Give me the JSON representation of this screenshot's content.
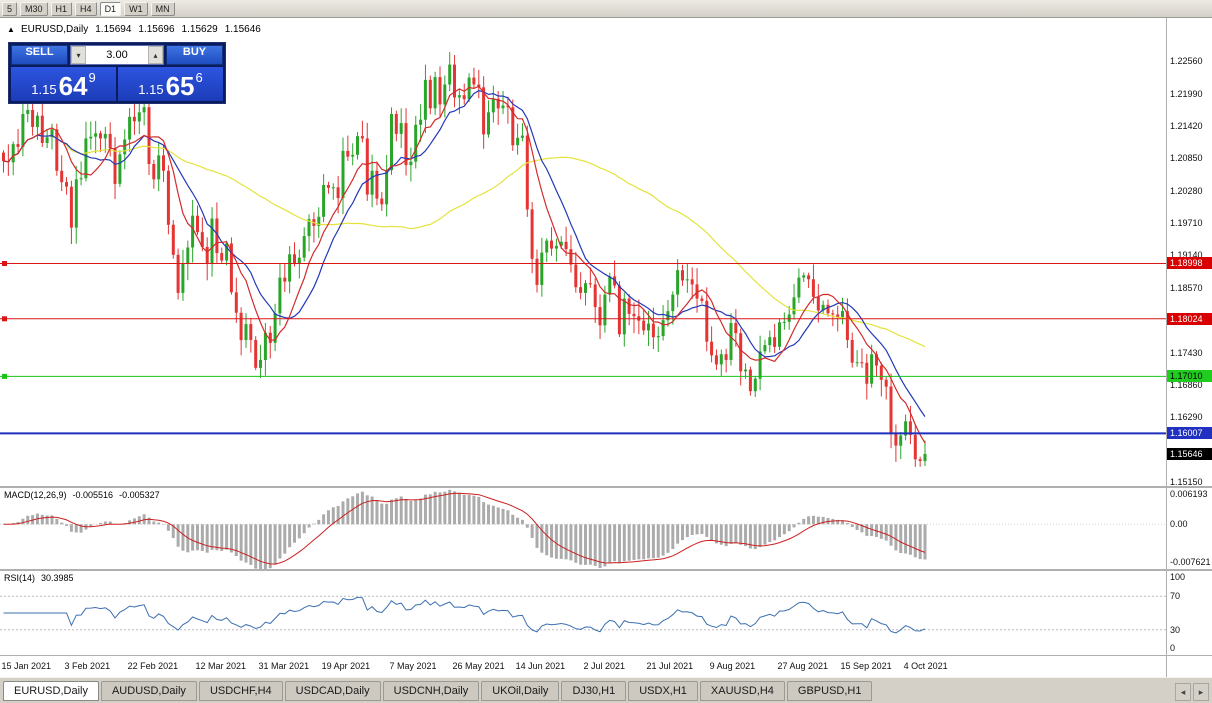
{
  "toolbar": {
    "timeframes": [
      "5",
      "M30",
      "H1",
      "H4",
      "D1",
      "W1",
      "MN"
    ],
    "active_timeframe": "D1"
  },
  "chart_header": {
    "symbol_period": "EURUSD,Daily",
    "ohlc": [
      "1.15694",
      "1.15696",
      "1.15629",
      "1.15646"
    ]
  },
  "one_click": {
    "sell_label": "SELL",
    "buy_label": "BUY",
    "volume": "3.00",
    "sell_price": {
      "big": "1.15",
      "mid": "64",
      "sup": "9"
    },
    "buy_price": {
      "big": "1.15",
      "mid": "65",
      "sup": "6"
    }
  },
  "price_axis": {
    "ticks": [
      "1.22560",
      "1.21990",
      "1.21420",
      "1.20850",
      "1.20280",
      "1.19710",
      "1.19140",
      "1.18570",
      "1.17430",
      "1.16860",
      "1.16290",
      "1.15150"
    ]
  },
  "levels": [
    {
      "price": 1.18998,
      "label": "1.18998",
      "color": "#d81616",
      "tag_bg": "#d80000",
      "tag_fg": "#ffffff",
      "width": 1,
      "marker": true
    },
    {
      "price": 1.18024,
      "label": "1.18024",
      "color": "#d81616",
      "tag_bg": "#d80000",
      "tag_fg": "#ffffff",
      "width": 1,
      "marker": true
    },
    {
      "price": 1.1701,
      "label": "1.17010",
      "color": "#17c517",
      "tag_bg": "#21cc21",
      "tag_fg": "#000000",
      "width": 1,
      "marker": true
    },
    {
      "price": 1.16007,
      "label": "1.16007",
      "color": "#1f2fbf",
      "tag_bg": "#2030c0",
      "tag_fg": "#ffffff",
      "width": 2,
      "marker": false
    }
  ],
  "current_price": {
    "price": 1.15646,
    "label": "1.15646",
    "tag_bg": "#000000",
    "tag_fg": "#ffffff"
  },
  "indicators": {
    "macd": {
      "name": "MACD(12,26,9)",
      "value_main": "-0.005516",
      "value_signal": "-0.005327",
      "axis_max": "0.006193",
      "axis_zero": "0.00",
      "axis_min": "-0.007621",
      "histogram_color": "#ababab",
      "signal_color": "#cc2020"
    },
    "rsi": {
      "name": "RSI(14)",
      "value": "30.3985",
      "axis": [
        "100",
        "70",
        "30",
        "0"
      ],
      "levels": [
        70,
        30
      ],
      "line_color": "#3b6fb0"
    }
  },
  "date_axis": {
    "labels": [
      {
        "text": "15 Jan 2021",
        "index": 0
      },
      {
        "text": "3 Feb 2021",
        "index": 13
      },
      {
        "text": "22 Feb 2021",
        "index": 26
      },
      {
        "text": "12 Mar 2021",
        "index": 40
      },
      {
        "text": "31 Mar 2021",
        "index": 53
      },
      {
        "text": "19 Apr 2021",
        "index": 66
      },
      {
        "text": "7 May 2021",
        "index": 80
      },
      {
        "text": "26 May 2021",
        "index": 93
      },
      {
        "text": "14 Jun 2021",
        "index": 106
      },
      {
        "text": "2 Jul 2021",
        "index": 120
      },
      {
        "text": "21 Jul 2021",
        "index": 133
      },
      {
        "text": "9 Aug 2021",
        "index": 146
      },
      {
        "text": "27 Aug 2021",
        "index": 160
      },
      {
        "text": "15 Sep 2021",
        "index": 173
      },
      {
        "text": "4 Oct 2021",
        "index": 186
      }
    ]
  },
  "tabs": {
    "active": "EURUSD,Daily",
    "items": [
      "EURUSD,Daily",
      "AUDUSD,Daily",
      "USDCHF,H4",
      "USDCAD,Daily",
      "USDCNH,Daily",
      "UKOil,Daily",
      "DJ30,H1",
      "USDX,H1",
      "XAUUSD,H4",
      "GBPUSD,H1"
    ]
  },
  "chart_data": {
    "type": "candlestick",
    "symbol": "EURUSD",
    "period": "Daily",
    "ylim": [
      1.1508,
      1.2332
    ],
    "first_open": 1.2095,
    "up_color": "#2aa52a",
    "down_color": "#e43434",
    "moving_averages": [
      {
        "period": 55,
        "color": "#e3e33c"
      },
      {
        "period": 13,
        "color": "#2438b8"
      },
      {
        "period": 8,
        "color": "#d22b2b"
      }
    ],
    "closes": [
      1.208,
      1.2078,
      1.211,
      1.2105,
      1.2163,
      1.217,
      1.214,
      1.216,
      1.2112,
      1.2122,
      1.2136,
      1.2063,
      1.2043,
      1.2035,
      1.1963,
      1.2048,
      1.205,
      1.212,
      1.2123,
      1.2129,
      1.212,
      1.2128,
      1.2103,
      1.204,
      1.2092,
      1.2118,
      1.2158,
      1.215,
      1.2166,
      1.2175,
      1.2075,
      1.2048,
      1.209,
      1.2063,
      1.1968,
      1.1915,
      1.1848,
      1.19,
      1.1928,
      1.1984,
      1.1955,
      1.1929,
      1.1899,
      1.1979,
      1.1918,
      1.1905,
      1.1935,
      1.1849,
      1.1813,
      1.1765,
      1.1793,
      1.1765,
      1.1716,
      1.173,
      1.1778,
      1.176,
      1.1812,
      1.1875,
      1.1868,
      1.1916,
      1.1899,
      1.191,
      1.1948,
      1.1978,
      1.1966,
      1.1982,
      1.2038,
      1.2033,
      1.2034,
      1.2015,
      1.2098,
      1.2088,
      1.2091,
      1.2124,
      1.212,
      1.2021,
      1.2063,
      1.2014,
      1.2004,
      1.2064,
      1.2163,
      1.2128,
      1.2147,
      1.2073,
      1.2079,
      1.2144,
      1.2153,
      1.2223,
      1.2173,
      1.2228,
      1.218,
      1.2215,
      1.225,
      1.2192,
      1.2196,
      1.2189,
      1.2227,
      1.2215,
      1.221,
      1.2127,
      1.2166,
      1.219,
      1.2173,
      1.2178,
      1.2175,
      1.2108,
      1.2121,
      1.2125,
      1.1995,
      1.1908,
      1.1862,
      1.1919,
      1.194,
      1.1926,
      1.1931,
      1.1938,
      1.1925,
      1.1898,
      1.1858,
      1.1848,
      1.1865,
      1.1863,
      1.1823,
      1.1791,
      1.1845,
      1.1877,
      1.1861,
      1.1775,
      1.1838,
      1.1811,
      1.1807,
      1.1799,
      1.1782,
      1.1794,
      1.177,
      1.1772,
      1.18,
      1.1816,
      1.1845,
      1.1888,
      1.187,
      1.1872,
      1.1863,
      1.1838,
      1.1834,
      1.1762,
      1.1738,
      1.1722,
      1.174,
      1.173,
      1.1795,
      1.1777,
      1.171,
      1.1713,
      1.1675,
      1.1697,
      1.1745,
      1.1756,
      1.177,
      1.1753,
      1.1796,
      1.1797,
      1.181,
      1.184,
      1.1875,
      1.1879,
      1.1872,
      1.1841,
      1.1817,
      1.1827,
      1.1812,
      1.181,
      1.1805,
      1.1816,
      1.1765,
      1.1725,
      1.1726,
      1.1725,
      1.1688,
      1.174,
      1.172,
      1.1695,
      1.1683,
      1.16,
      1.1579,
      1.1597,
      1.1622,
      1.1598,
      1.1555,
      1.1552,
      1.15646
    ]
  }
}
